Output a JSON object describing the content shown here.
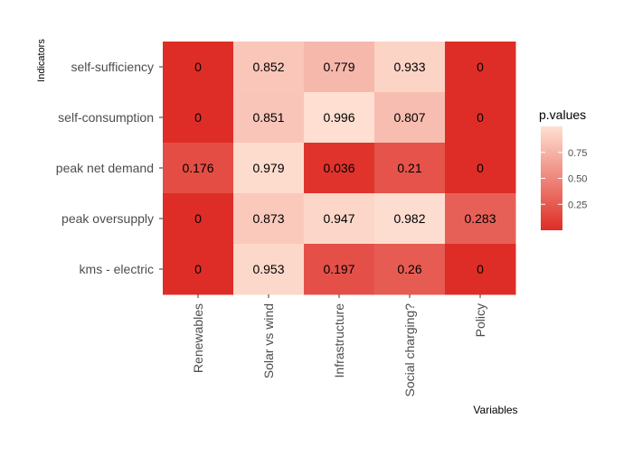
{
  "chart_data": {
    "type": "heatmap",
    "xlabel": "Variables",
    "ylabel": "Indicators",
    "x_categories": [
      "Renewables",
      "Solar vs wind",
      "Infrastructure",
      "Social charging?",
      "Policy"
    ],
    "y_categories": [
      "self-sufficiency",
      "self-consumption",
      "peak net demand",
      "peak oversupply",
      "kms - electric"
    ],
    "values": [
      [
        0,
        0.852,
        0.779,
        0.933,
        0
      ],
      [
        0,
        0.851,
        0.996,
        0.807,
        0
      ],
      [
        0.176,
        0.979,
        0.036,
        0.21,
        0
      ],
      [
        0,
        0.873,
        0.947,
        0.982,
        0.283
      ],
      [
        0,
        0.953,
        0.197,
        0.26,
        0
      ]
    ],
    "value_labels": [
      [
        "0",
        "0.852",
        "0.779",
        "0.933",
        "0"
      ],
      [
        "0",
        "0.851",
        "0.996",
        "0.807",
        "0"
      ],
      [
        "0.176",
        "0.979",
        "0.036",
        "0.21",
        "0"
      ],
      [
        "0",
        "0.873",
        "0.947",
        "0.982",
        "0.283"
      ],
      [
        "0",
        "0.953",
        "0.197",
        "0.26",
        "0"
      ]
    ],
    "legend": {
      "title": "p.values",
      "ticks": [
        0.25,
        0.5,
        0.75
      ],
      "tick_labels": [
        "0.25",
        "0.50",
        "0.75"
      ],
      "range": [
        0,
        1
      ],
      "position": "right"
    },
    "color_scale": {
      "low": "#de2d26",
      "high": "#fee0d2"
    },
    "grid": false
  }
}
